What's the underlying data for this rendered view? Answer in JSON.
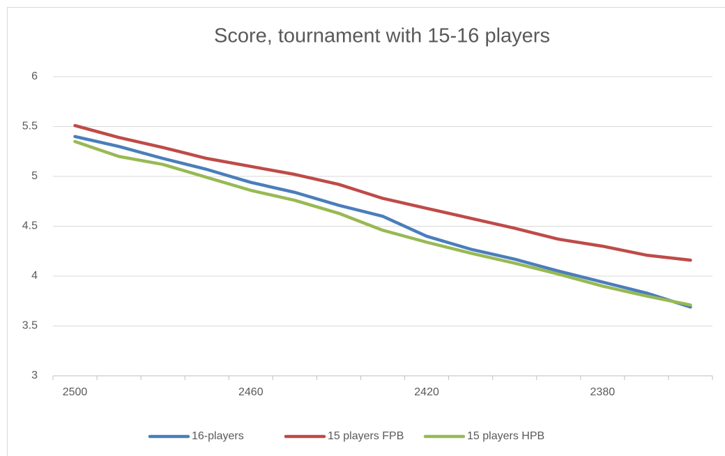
{
  "chart_data": {
    "type": "line",
    "title": "Score, tournament with 15-16 players",
    "categories": [
      "2500",
      null,
      null,
      null,
      "2460",
      null,
      null,
      null,
      "2420",
      null,
      null,
      null,
      "2380",
      null,
      null
    ],
    "series": [
      {
        "name": "16-players",
        "color": "#4a7ebb",
        "values": [
          5.4,
          5.3,
          5.18,
          5.07,
          4.94,
          4.84,
          4.71,
          4.6,
          4.4,
          4.27,
          4.17,
          4.05,
          3.94,
          3.83,
          3.69
        ]
      },
      {
        "name": "15 players FPB",
        "color": "#be4b48",
        "values": [
          5.51,
          5.39,
          5.29,
          5.18,
          5.1,
          5.02,
          4.92,
          4.78,
          4.68,
          4.58,
          4.48,
          4.37,
          4.3,
          4.21,
          4.16
        ]
      },
      {
        "name": "15 players HPB",
        "color": "#98b954",
        "values": [
          5.35,
          5.2,
          5.12,
          4.99,
          4.86,
          4.76,
          4.63,
          4.46,
          4.34,
          4.23,
          4.13,
          4.02,
          3.9,
          3.8,
          3.71
        ]
      }
    ],
    "ylim": [
      3,
      6
    ],
    "yticks": [
      3,
      3.5,
      4,
      4.5,
      5,
      5.5,
      6
    ],
    "grid": true,
    "legend": "bottom"
  }
}
